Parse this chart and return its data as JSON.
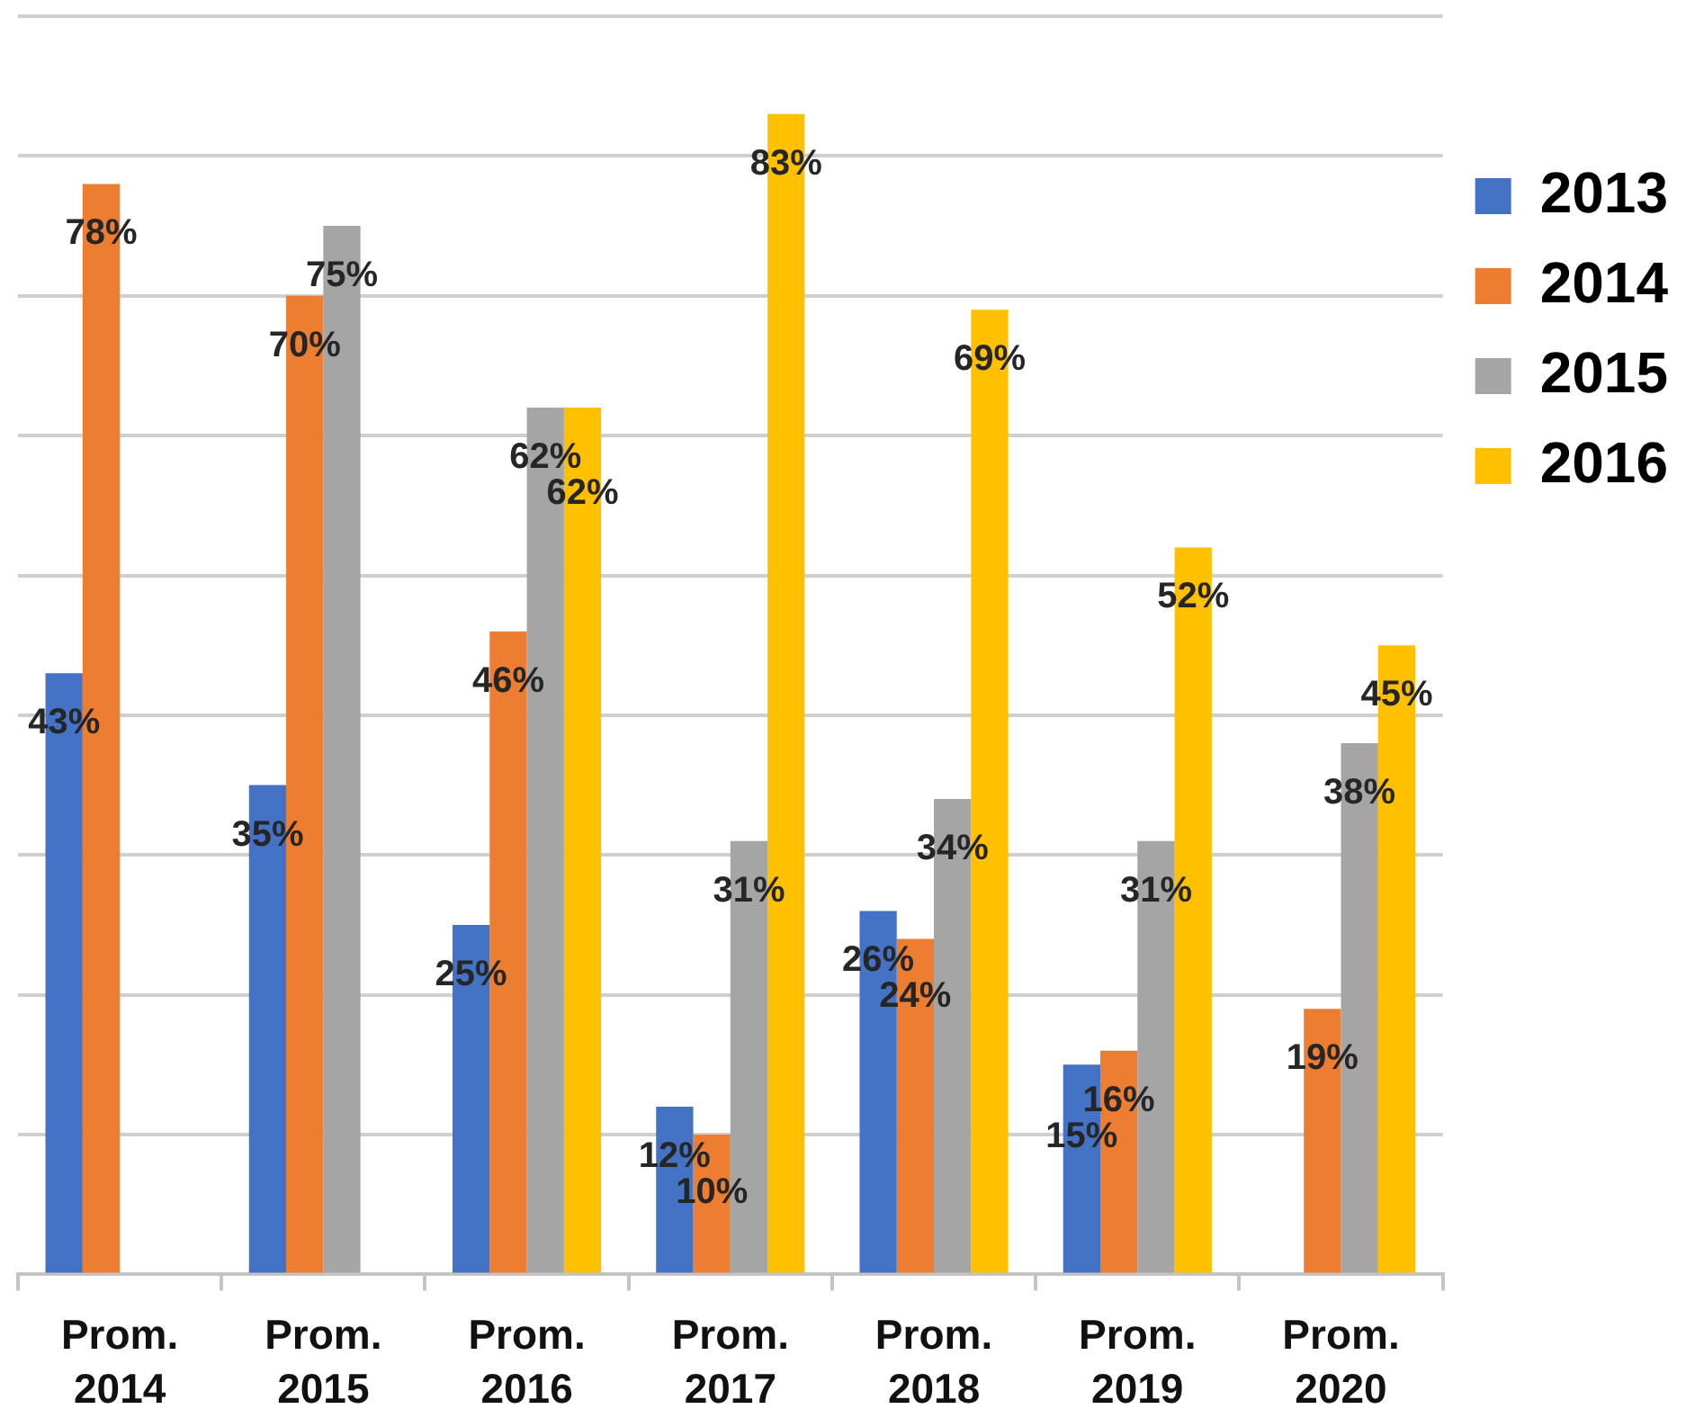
{
  "chart_data": {
    "type": "bar",
    "categories": [
      "Prom. 2014",
      "Prom. 2015",
      "Prom. 2016",
      "Prom. 2017",
      "Prom. 2018",
      "Prom. 2019",
      "Prom. 2020"
    ],
    "series": [
      {
        "name": "2013",
        "color": "#4472c4",
        "values": [
          43,
          35,
          25,
          12,
          26,
          15,
          null
        ],
        "value_labels": [
          "43%",
          "35%",
          "25%",
          "12%",
          "26%",
          "15%",
          null
        ]
      },
      {
        "name": "2014",
        "color": "#ed7d31",
        "values": [
          78,
          70,
          46,
          10,
          24,
          16,
          19
        ],
        "value_labels": [
          "78%",
          "70%",
          "46%",
          "10%",
          "24%",
          "16%",
          "19%"
        ]
      },
      {
        "name": "2015",
        "color": "#a5a5a5",
        "values": [
          null,
          75,
          62,
          31,
          34,
          31,
          38
        ],
        "value_labels": [
          null,
          "75%",
          "62%",
          "31%",
          "34%",
          "31%",
          "38%"
        ]
      },
      {
        "name": "2016",
        "color": "#ffc000",
        "values": [
          null,
          null,
          62,
          83,
          69,
          52,
          45
        ],
        "value_labels": [
          null,
          null,
          "62%",
          "83%",
          "69%",
          "52%",
          "45%"
        ]
      }
    ],
    "ylim": [
      0,
      90
    ],
    "yticks": [
      0,
      10,
      20,
      30,
      40,
      50,
      60,
      70,
      80,
      90
    ],
    "grid": "y",
    "legend": "right",
    "tick_labels": "x"
  }
}
